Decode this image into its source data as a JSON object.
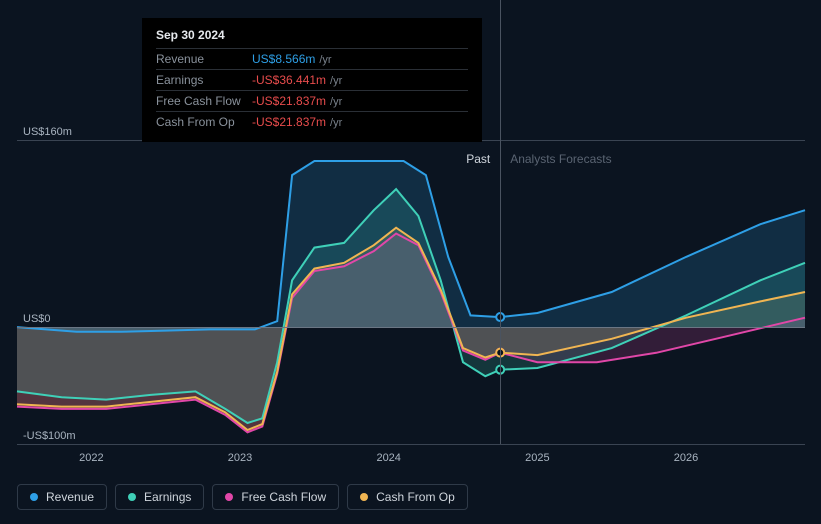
{
  "colors": {
    "revenue": "#2e9fe6",
    "earnings": "#3fd0b8",
    "fcf": "#e147a8",
    "cfo": "#f0b552",
    "grid": "#3a4452",
    "zero": "#6b7684",
    "bg": "#0b1420",
    "text": "#a9b4c0"
  },
  "chart": {
    "type": "line",
    "ylim": [
      -100,
      160
    ],
    "yticks": [
      {
        "v": 160,
        "label": "US$160m"
      },
      {
        "v": 0,
        "label": "US$0"
      },
      {
        "v": -100,
        "label": "-US$100m"
      }
    ],
    "xticks": [
      {
        "t": 2022,
        "label": "2022"
      },
      {
        "t": 2023,
        "label": "2023"
      },
      {
        "t": 2024,
        "label": "2024"
      },
      {
        "t": 2025,
        "label": "2025"
      },
      {
        "t": 2026,
        "label": "2026"
      }
    ],
    "x_range": [
      2021.5,
      2026.8
    ],
    "divider_x": 2024.75,
    "sections": {
      "past": "Past",
      "forecast": "Analysts Forecasts"
    },
    "series": [
      {
        "key": "revenue",
        "label": "Revenue",
        "color": "#2e9fe6",
        "fill": "rgba(46,159,230,0.18)",
        "points": [
          [
            2021.5,
            0
          ],
          [
            2021.9,
            -4
          ],
          [
            2022.2,
            -4
          ],
          [
            2022.5,
            -3
          ],
          [
            2022.8,
            -2
          ],
          [
            2023.1,
            -2
          ],
          [
            2023.25,
            5
          ],
          [
            2023.35,
            130
          ],
          [
            2023.5,
            142
          ],
          [
            2023.8,
            142
          ],
          [
            2024.1,
            142
          ],
          [
            2024.25,
            130
          ],
          [
            2024.4,
            60
          ],
          [
            2024.55,
            10
          ],
          [
            2024.75,
            8.566
          ],
          [
            2025.0,
            12
          ],
          [
            2025.5,
            30
          ],
          [
            2026.0,
            60
          ],
          [
            2026.5,
            88
          ],
          [
            2026.8,
            100
          ]
        ]
      },
      {
        "key": "earnings",
        "label": "Earnings",
        "color": "#3fd0b8",
        "fill": "rgba(63,208,184,0.18)",
        "points": [
          [
            2021.5,
            -55
          ],
          [
            2021.8,
            -60
          ],
          [
            2022.1,
            -62
          ],
          [
            2022.4,
            -58
          ],
          [
            2022.7,
            -55
          ],
          [
            2022.9,
            -70
          ],
          [
            2023.05,
            -82
          ],
          [
            2023.15,
            -78
          ],
          [
            2023.25,
            -30
          ],
          [
            2023.35,
            40
          ],
          [
            2023.5,
            68
          ],
          [
            2023.7,
            72
          ],
          [
            2023.9,
            100
          ],
          [
            2024.05,
            118
          ],
          [
            2024.2,
            95
          ],
          [
            2024.35,
            40
          ],
          [
            2024.5,
            -30
          ],
          [
            2024.65,
            -42
          ],
          [
            2024.75,
            -36.441
          ],
          [
            2025.0,
            -35
          ],
          [
            2025.5,
            -18
          ],
          [
            2026.0,
            10
          ],
          [
            2026.5,
            40
          ],
          [
            2026.8,
            55
          ]
        ]
      },
      {
        "key": "fcf",
        "label": "Free Cash Flow",
        "color": "#e147a8",
        "fill": "rgba(225,71,168,0.18)",
        "points": [
          [
            2021.5,
            -68
          ],
          [
            2021.8,
            -70
          ],
          [
            2022.1,
            -70
          ],
          [
            2022.4,
            -66
          ],
          [
            2022.7,
            -62
          ],
          [
            2022.9,
            -75
          ],
          [
            2023.05,
            -90
          ],
          [
            2023.15,
            -85
          ],
          [
            2023.25,
            -40
          ],
          [
            2023.35,
            25
          ],
          [
            2023.5,
            48
          ],
          [
            2023.7,
            52
          ],
          [
            2023.9,
            65
          ],
          [
            2024.05,
            80
          ],
          [
            2024.2,
            70
          ],
          [
            2024.35,
            30
          ],
          [
            2024.5,
            -20
          ],
          [
            2024.65,
            -28
          ],
          [
            2024.75,
            -21.837
          ],
          [
            2025.0,
            -30
          ],
          [
            2025.4,
            -30
          ],
          [
            2025.8,
            -22
          ],
          [
            2026.2,
            -10
          ],
          [
            2026.6,
            2
          ],
          [
            2026.8,
            8
          ]
        ]
      },
      {
        "key": "cfo",
        "label": "Cash From Op",
        "color": "#f0b552",
        "fill": "rgba(240,181,82,0.18)",
        "points": [
          [
            2021.5,
            -66
          ],
          [
            2021.8,
            -68
          ],
          [
            2022.1,
            -68
          ],
          [
            2022.4,
            -64
          ],
          [
            2022.7,
            -60
          ],
          [
            2022.9,
            -73
          ],
          [
            2023.05,
            -88
          ],
          [
            2023.15,
            -83
          ],
          [
            2023.25,
            -38
          ],
          [
            2023.35,
            28
          ],
          [
            2023.5,
            50
          ],
          [
            2023.7,
            55
          ],
          [
            2023.9,
            70
          ],
          [
            2024.05,
            85
          ],
          [
            2024.2,
            72
          ],
          [
            2024.35,
            32
          ],
          [
            2024.5,
            -18
          ],
          [
            2024.65,
            -26
          ],
          [
            2024.75,
            -21.837
          ],
          [
            2025.0,
            -24
          ],
          [
            2025.5,
            -10
          ],
          [
            2026.0,
            8
          ],
          [
            2026.5,
            22
          ],
          [
            2026.8,
            30
          ]
        ]
      }
    ],
    "markers_at": 2024.75
  },
  "tooltip": {
    "date": "Sep 30 2024",
    "rows": [
      {
        "label": "Revenue",
        "value": "US$8.566m",
        "unit": "/yr",
        "color": "#2e9fe6"
      },
      {
        "label": "Earnings",
        "value": "-US$36.441m",
        "unit": "/yr",
        "color": "#e84c4c"
      },
      {
        "label": "Free Cash Flow",
        "value": "-US$21.837m",
        "unit": "/yr",
        "color": "#e84c4c"
      },
      {
        "label": "Cash From Op",
        "value": "-US$21.837m",
        "unit": "/yr",
        "color": "#e84c4c"
      }
    ]
  },
  "legend": [
    {
      "label": "Revenue",
      "color": "#2e9fe6"
    },
    {
      "label": "Earnings",
      "color": "#3fd0b8"
    },
    {
      "label": "Free Cash Flow",
      "color": "#e147a8"
    },
    {
      "label": "Cash From Op",
      "color": "#f0b552"
    }
  ]
}
